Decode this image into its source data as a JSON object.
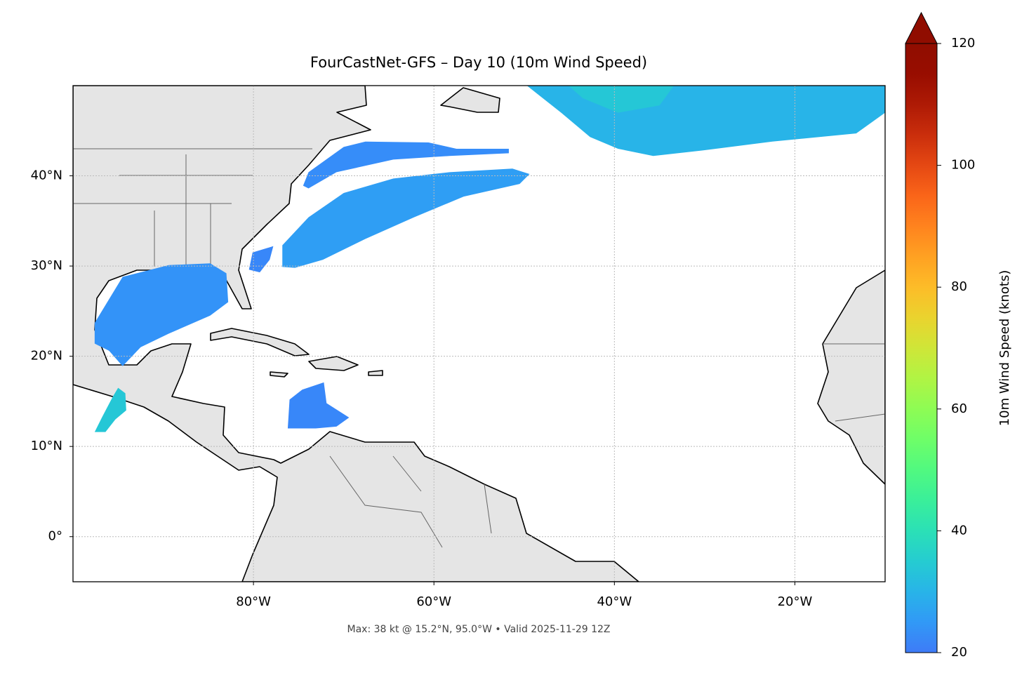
{
  "chart_data": {
    "type": "map",
    "title": "FourCastNet-GFS – Day 10 (10m Wind Speed)",
    "annotation": "Max: 38 kt @ 15.2°N, 95.0°W • Valid 2025-11-29 12Z",
    "xlim": [
      -100,
      -10
    ],
    "ylim": [
      -5,
      50
    ],
    "xticks": [
      {
        "value": -80,
        "label": "80°W"
      },
      {
        "value": -60,
        "label": "60°W"
      },
      {
        "value": -40,
        "label": "40°W"
      },
      {
        "value": -20,
        "label": "20°W"
      }
    ],
    "yticks": [
      {
        "value": 0,
        "label": "0°"
      },
      {
        "value": 10,
        "label": "10°N"
      },
      {
        "value": 20,
        "label": "20°N"
      },
      {
        "value": 30,
        "label": "30°N"
      },
      {
        "value": 40,
        "label": "40°N"
      }
    ],
    "grid": true,
    "colormap": "turbo",
    "colorbar": {
      "label": "10m Wind Speed (knots)",
      "lim": [
        20,
        120
      ],
      "ticks": [
        20,
        40,
        60,
        80,
        100,
        120
      ],
      "extend": "max"
    },
    "wind_regions": [
      {
        "value": 24,
        "polygon": [
          [
            -97.6,
            23.7
          ],
          [
            -94.5,
            28.8
          ],
          [
            -89.4,
            30.1
          ],
          [
            -84.8,
            30.3
          ],
          [
            -83.0,
            29.2
          ],
          [
            -82.8,
            26.0
          ],
          [
            -84.8,
            24.5
          ],
          [
            -89.4,
            22.5
          ],
          [
            -92.5,
            21.0
          ],
          [
            -94.5,
            18.9
          ],
          [
            -96.0,
            20.6
          ],
          [
            -97.6,
            21.4
          ]
        ]
      },
      {
        "value": 26,
        "polygon": [
          [
            -76.8,
            29.9
          ],
          [
            -76.8,
            32.3
          ],
          [
            -73.9,
            35.4
          ],
          [
            -70.0,
            38.1
          ],
          [
            -64.5,
            39.7
          ],
          [
            -58.3,
            40.4
          ],
          [
            -51.3,
            40.8
          ],
          [
            -49.4,
            40.2
          ],
          [
            -50.5,
            39.1
          ],
          [
            -56.7,
            37.7
          ],
          [
            -62.2,
            35.4
          ],
          [
            -67.6,
            33.0
          ],
          [
            -72.3,
            30.7
          ],
          [
            -75.4,
            29.8
          ]
        ]
      },
      {
        "value": 22,
        "polygon": [
          [
            -80.5,
            29.6
          ],
          [
            -80.1,
            31.5
          ],
          [
            -77.8,
            32.2
          ],
          [
            -78.2,
            30.7
          ],
          [
            -79.3,
            29.3
          ]
        ]
      },
      {
        "value": 23,
        "polygon": [
          [
            -74.5,
            38.9
          ],
          [
            -73.9,
            40.4
          ],
          [
            -70.0,
            43.2
          ],
          [
            -67.6,
            43.8
          ],
          [
            -60.6,
            43.7
          ],
          [
            -57.5,
            43.0
          ],
          [
            -51.7,
            43.0
          ],
          [
            -51.7,
            42.5
          ],
          [
            -58.3,
            42.2
          ],
          [
            -64.5,
            41.8
          ],
          [
            -70.8,
            40.4
          ],
          [
            -73.9,
            38.6
          ]
        ]
      },
      {
        "value": 30,
        "polygon": [
          [
            -49.7,
            50
          ],
          [
            -10,
            50
          ],
          [
            -10,
            47.0
          ],
          [
            -13.2,
            44.7
          ],
          [
            -22.5,
            43.8
          ],
          [
            -30.3,
            42.8
          ],
          [
            -35.7,
            42.2
          ],
          [
            -39.6,
            43.0
          ],
          [
            -42.7,
            44.3
          ],
          [
            -45.9,
            47.0
          ]
        ]
      },
      {
        "value": 34,
        "polygon": [
          [
            -45.1,
            50
          ],
          [
            -33.4,
            50
          ],
          [
            -35.0,
            47.8
          ],
          [
            -39.6,
            47.0
          ],
          [
            -43.5,
            48.6
          ]
        ]
      },
      {
        "value": 22,
        "polygon": [
          [
            -76.2,
            12.0
          ],
          [
            -76.0,
            15.2
          ],
          [
            -74.6,
            16.3
          ],
          [
            -72.2,
            17.1
          ],
          [
            -71.9,
            14.8
          ],
          [
            -69.4,
            13.2
          ],
          [
            -70.8,
            12.2
          ],
          [
            -73.1,
            12.0
          ]
        ]
      },
      {
        "value": 34,
        "polygon": [
          [
            -97.6,
            11.6
          ],
          [
            -96.8,
            13.2
          ],
          [
            -95.6,
            15.5
          ],
          [
            -95.0,
            16.5
          ],
          [
            -94.2,
            15.9
          ],
          [
            -94.1,
            14.0
          ],
          [
            -95.3,
            13.0
          ],
          [
            -96.4,
            11.6
          ]
        ]
      }
    ]
  }
}
